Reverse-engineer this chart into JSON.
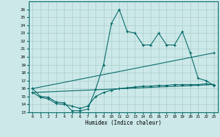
{
  "xlabel": "Humidex (Indice chaleur)",
  "bg_color": "#cce8e8",
  "line_color": "#006666",
  "grid_color": "#aacccc",
  "xlim": [
    -0.5,
    23.5
  ],
  "ylim": [
    13,
    27
  ],
  "yticks": [
    13,
    14,
    15,
    16,
    17,
    18,
    19,
    20,
    21,
    22,
    23,
    24,
    25,
    26
  ],
  "xticks": [
    0,
    1,
    2,
    3,
    4,
    5,
    6,
    7,
    8,
    9,
    10,
    11,
    12,
    13,
    14,
    15,
    16,
    17,
    18,
    19,
    20,
    21,
    22,
    23
  ],
  "series1_x": [
    0,
    1,
    2,
    3,
    4,
    5,
    6,
    7,
    8,
    9,
    10,
    11,
    12,
    13,
    14,
    15,
    16,
    17,
    18,
    19,
    20,
    21,
    22,
    23
  ],
  "series1_y": [
    16.0,
    15.0,
    14.9,
    14.3,
    14.2,
    13.2,
    13.2,
    13.4,
    15.9,
    19.0,
    24.2,
    26.0,
    23.2,
    23.0,
    21.5,
    21.5,
    23.0,
    21.5,
    21.5,
    23.2,
    20.5,
    17.3,
    17.0,
    16.4
  ],
  "series2_x": [
    0,
    23
  ],
  "series2_y": [
    16.0,
    20.5
  ],
  "series3_x": [
    0,
    23
  ],
  "series3_y": [
    15.5,
    16.5
  ],
  "series4_x": [
    0,
    1,
    2,
    3,
    4,
    5,
    6,
    7,
    8,
    9,
    10,
    11,
    12,
    13,
    14,
    15,
    16,
    17,
    18,
    19,
    20,
    21,
    22,
    23
  ],
  "series4_y": [
    15.5,
    14.9,
    14.7,
    14.1,
    14.0,
    13.8,
    13.5,
    13.8,
    15.0,
    15.5,
    15.8,
    16.0,
    16.1,
    16.2,
    16.3,
    16.3,
    16.4,
    16.4,
    16.5,
    16.5,
    16.5,
    16.5,
    16.6,
    16.5
  ]
}
